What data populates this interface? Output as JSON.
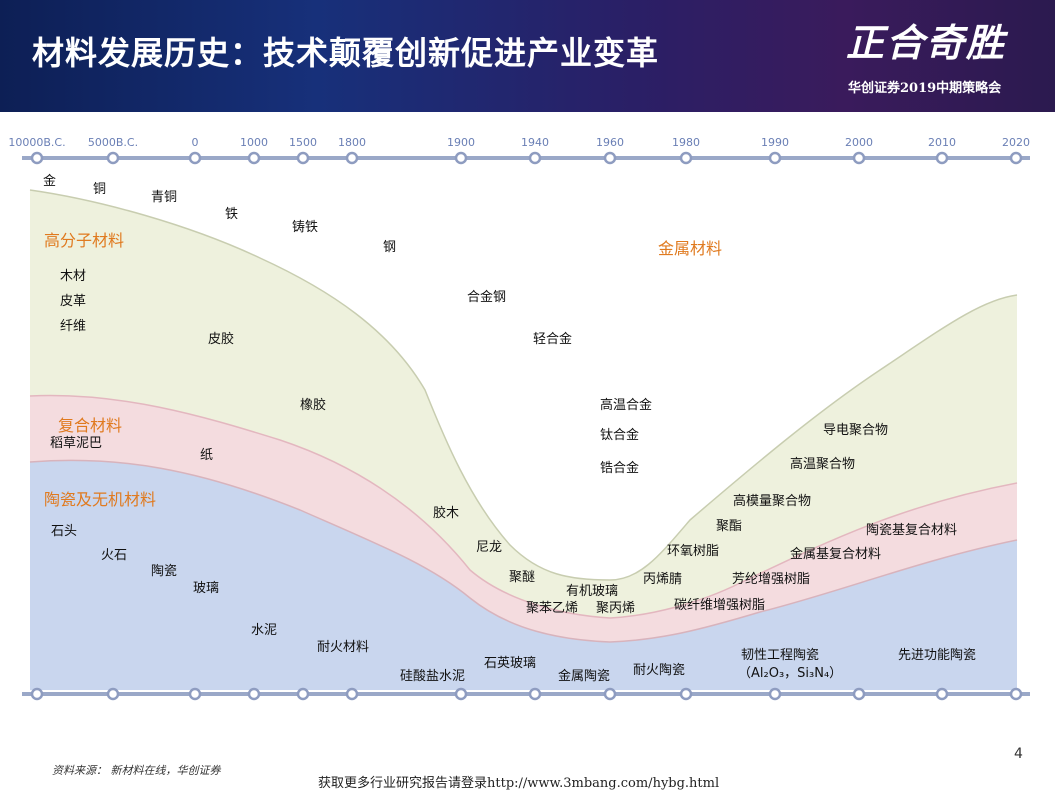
{
  "header": {
    "title": "材料发展历史：技术颠覆创新促进产业变革",
    "logo_text": "正合奇胜",
    "subtitle": "华创证券2019中期策略会"
  },
  "timeline": [
    "10000B.C.",
    "5000B.C.",
    "0",
    "1000",
    "1500",
    "1800",
    "1900",
    "1940",
    "1960",
    "1980",
    "1990",
    "2000",
    "2010",
    "2020"
  ],
  "categories": {
    "metal": "金属材料",
    "polymer": "高分子材料",
    "composite": "复合材料",
    "ceramic": "陶瓷及无机材料"
  },
  "items": {
    "metal": [
      "金",
      "铜",
      "青铜",
      "铁",
      "铸铁",
      "钢",
      "合金钢",
      "轻合金",
      "高温合金",
      "钛合金",
      "锆合金"
    ],
    "polymer": [
      "木材",
      "皮革",
      "纤维",
      "皮胶",
      "橡胶",
      "胶木",
      "尼龙",
      "聚醚",
      "有机玻璃",
      "聚苯乙烯",
      "聚丙烯",
      "丙烯腈",
      "环氧树脂",
      "聚酯",
      "高模量聚合物",
      "高温聚合物",
      "导电聚合物"
    ],
    "composite": [
      "稻草泥巴",
      "纸",
      "碳纤维增强树脂",
      "芳纶增强树脂",
      "金属基复合材料",
      "陶瓷基复合材料"
    ],
    "ceramic": [
      "石头",
      "火石",
      "陶瓷",
      "玻璃",
      "水泥",
      "耐火材料",
      "硅酸盐水泥",
      "石英玻璃",
      "金属陶瓷",
      "耐火陶瓷",
      "韧性工程陶瓷",
      "（Al₂O₃，Si₃N₄）",
      "先进功能陶瓷"
    ]
  },
  "colors": {
    "metal": "#ffffff",
    "polymer": "#eef1dd",
    "composite": "#f4dcdf",
    "ceramic": "#c9d6ee",
    "category_label": "#e07a1f",
    "axis": "#9aa8c8",
    "tick_text": "#6a7fb5"
  },
  "footer": {
    "source": "资料来源： 新材料在线，华创证券",
    "link": "获取更多行业研究报告请登录http://www.3mbang.com/hybg.html",
    "page": "4"
  }
}
